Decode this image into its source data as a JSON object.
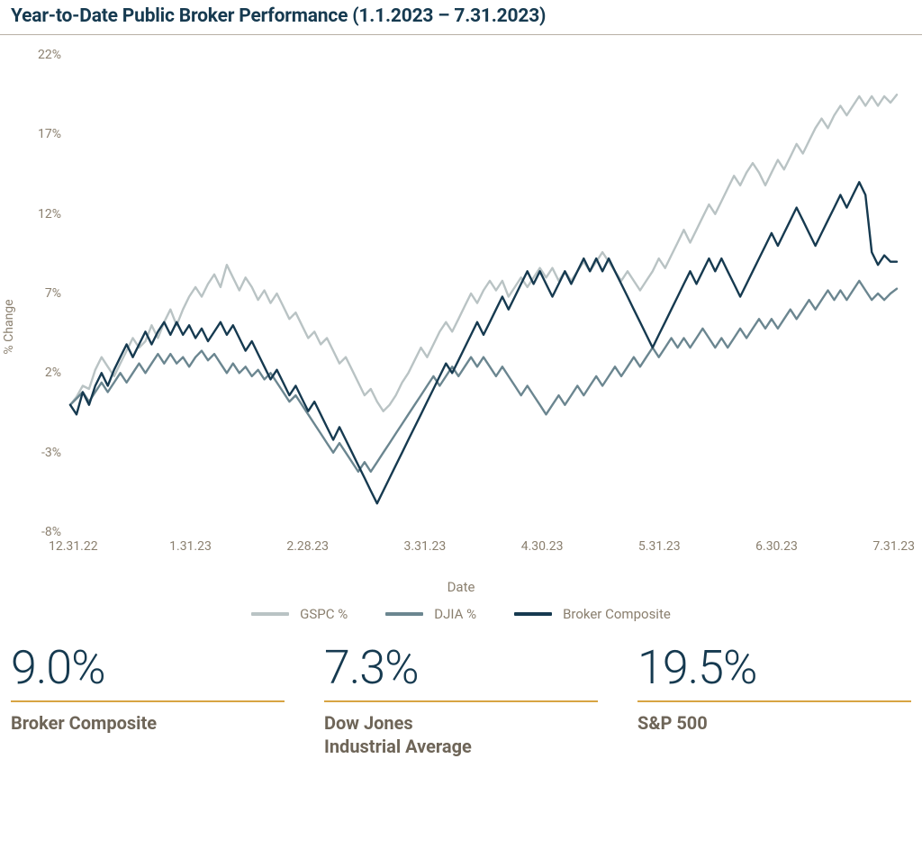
{
  "title": "Year-to-Date Public Broker Performance (1.1.2023 – 7.31.2023)",
  "chart": {
    "type": "line",
    "y_axis": {
      "label": "% Change",
      "min": -8,
      "max": 22,
      "tick_step": 5,
      "ticks": [
        -8,
        -3,
        2,
        7,
        12,
        17,
        22
      ],
      "tick_labels": [
        "-8%",
        "-3%",
        "2%",
        "7%",
        "12%",
        "17%",
        "22%"
      ],
      "label_color": "#8a7f6e",
      "label_fontsize": 14
    },
    "x_axis": {
      "label": "Date",
      "tick_labels": [
        "12.31.22",
        "1.31.23",
        "2.28.23",
        "3.31.23",
        "4.30.23",
        "5.31.23",
        "6.30.23",
        "7.31.23"
      ],
      "tick_positions_pct": [
        1,
        15,
        29,
        43,
        57,
        71,
        85,
        99
      ],
      "label_color": "#8a7f6e",
      "label_fontsize": 14
    },
    "background_color": "#ffffff",
    "grid": false,
    "line_width": 2.4,
    "series": [
      {
        "name": "GSPC %",
        "color": "#b9c3c4",
        "values": [
          0,
          0.5,
          1.2,
          1.0,
          2.2,
          3.0,
          2.4,
          1.8,
          2.6,
          3.4,
          4.2,
          3.6,
          4.0,
          5.0,
          4.2,
          5.2,
          6.0,
          5.0,
          6.0,
          6.8,
          7.4,
          6.8,
          7.6,
          8.2,
          7.4,
          8.8,
          8.0,
          7.2,
          8.0,
          7.4,
          6.6,
          7.2,
          6.4,
          7.0,
          6.2,
          5.4,
          5.8,
          5.0,
          4.2,
          4.6,
          3.8,
          4.2,
          3.4,
          2.6,
          3.0,
          2.2,
          1.4,
          0.6,
          1.0,
          0.2,
          -0.4,
          0.0,
          0.6,
          1.4,
          2.0,
          2.8,
          3.6,
          3.0,
          3.8,
          4.6,
          5.2,
          4.6,
          5.4,
          6.2,
          7.0,
          6.4,
          7.2,
          7.8,
          7.2,
          7.8,
          6.8,
          7.4,
          8.0,
          7.4,
          8.0,
          8.6,
          8.0,
          8.6,
          7.8,
          8.4,
          7.8,
          8.4,
          9.0,
          8.4,
          9.0,
          9.6,
          9.0,
          8.4,
          7.8,
          8.4,
          7.8,
          7.2,
          7.8,
          8.4,
          9.2,
          8.6,
          9.4,
          10.2,
          11.0,
          10.2,
          11.0,
          11.8,
          12.6,
          12.0,
          12.8,
          13.6,
          14.4,
          13.8,
          14.6,
          15.2,
          14.6,
          13.8,
          14.6,
          15.4,
          14.8,
          15.6,
          16.4,
          15.8,
          16.6,
          17.4,
          18.0,
          17.4,
          18.2,
          18.8,
          18.2,
          18.8,
          19.4,
          18.8,
          19.4,
          18.8,
          19.4,
          19.0,
          19.5
        ]
      },
      {
        "name": "DJIA %",
        "color": "#6b8690",
        "values": [
          0,
          0.4,
          0.8,
          0.2,
          0.8,
          1.4,
          0.8,
          1.4,
          2.0,
          1.4,
          2.0,
          2.6,
          2.0,
          2.6,
          3.2,
          2.6,
          3.2,
          2.6,
          3.0,
          2.4,
          3.0,
          3.4,
          2.8,
          3.2,
          2.6,
          2.0,
          2.6,
          2.0,
          2.4,
          1.8,
          2.2,
          1.6,
          2.0,
          1.4,
          0.8,
          0.2,
          0.6,
          0.0,
          -0.6,
          -1.2,
          -1.8,
          -2.4,
          -3.0,
          -2.4,
          -3.0,
          -3.6,
          -4.2,
          -3.6,
          -4.2,
          -3.6,
          -3.0,
          -2.4,
          -1.8,
          -1.2,
          -0.6,
          0.0,
          0.6,
          1.2,
          1.8,
          1.2,
          1.8,
          2.4,
          1.8,
          2.4,
          3.0,
          2.4,
          3.0,
          2.4,
          1.8,
          2.4,
          1.8,
          1.2,
          0.6,
          1.2,
          0.6,
          0.0,
          -0.6,
          0.0,
          0.6,
          0.0,
          0.6,
          1.2,
          0.6,
          1.2,
          1.8,
          1.2,
          1.8,
          2.4,
          1.8,
          2.4,
          3.0,
          2.4,
          3.0,
          3.6,
          3.0,
          3.6,
          4.2,
          3.6,
          4.2,
          3.6,
          4.2,
          4.8,
          4.2,
          3.6,
          4.2,
          3.6,
          4.2,
          4.8,
          4.2,
          4.8,
          5.4,
          4.8,
          5.4,
          4.8,
          5.4,
          6.0,
          5.4,
          6.0,
          6.6,
          6.0,
          6.6,
          7.2,
          6.6,
          7.2,
          6.6,
          7.2,
          7.8,
          7.2,
          6.6,
          7.0,
          6.6,
          7.0,
          7.3
        ]
      },
      {
        "name": "Broker Composite",
        "color": "#163a50",
        "values": [
          0,
          -0.6,
          0.8,
          0.0,
          1.2,
          2.0,
          1.2,
          2.2,
          3.0,
          3.8,
          3.0,
          3.8,
          4.6,
          3.8,
          4.6,
          5.2,
          4.4,
          5.2,
          4.4,
          5.0,
          4.2,
          4.8,
          4.0,
          4.6,
          5.2,
          4.4,
          5.0,
          4.2,
          3.4,
          4.0,
          3.2,
          2.4,
          1.6,
          2.2,
          1.4,
          0.6,
          1.2,
          0.4,
          -0.4,
          0.2,
          -0.6,
          -1.4,
          -2.2,
          -1.4,
          -2.2,
          -3.0,
          -3.8,
          -4.6,
          -5.4,
          -6.2,
          -5.4,
          -4.6,
          -3.8,
          -3.0,
          -2.2,
          -1.4,
          -0.6,
          0.2,
          1.0,
          1.8,
          2.6,
          2.0,
          2.8,
          3.6,
          4.4,
          5.2,
          4.4,
          5.2,
          6.0,
          6.8,
          6.0,
          6.8,
          7.6,
          8.4,
          7.6,
          8.4,
          7.6,
          6.8,
          7.6,
          8.4,
          7.6,
          8.4,
          9.2,
          8.4,
          9.2,
          8.4,
          9.2,
          8.4,
          7.6,
          6.8,
          6.0,
          5.2,
          4.4,
          3.6,
          4.4,
          5.2,
          6.0,
          6.8,
          7.6,
          8.4,
          7.6,
          8.4,
          9.2,
          8.4,
          9.2,
          8.4,
          7.6,
          6.8,
          7.6,
          8.4,
          9.2,
          10.0,
          10.8,
          10.0,
          10.8,
          11.6,
          12.4,
          11.6,
          10.8,
          10.0,
          10.8,
          11.6,
          12.4,
          13.2,
          12.4,
          13.2,
          14.0,
          13.2,
          9.6,
          8.8,
          9.4,
          9.0,
          9.0
        ]
      }
    ],
    "legend": {
      "position": "bottom",
      "items": [
        "GSPC %",
        "DJIA %",
        "Broker Composite"
      ]
    }
  },
  "stats": [
    {
      "value": "9.0%",
      "label": "Broker Composite"
    },
    {
      "value": "7.3%",
      "label": "Dow Jones\nIndustrial Average"
    },
    {
      "value": "19.5%",
      "label": "S&P 500"
    }
  ],
  "colors": {
    "title": "#163a50",
    "title_underline": "#b8b0a5",
    "axis_text": "#8a7f6e",
    "stat_value": "#163a50",
    "stat_underline": "#d7a443",
    "stat_label": "#6e6558"
  }
}
